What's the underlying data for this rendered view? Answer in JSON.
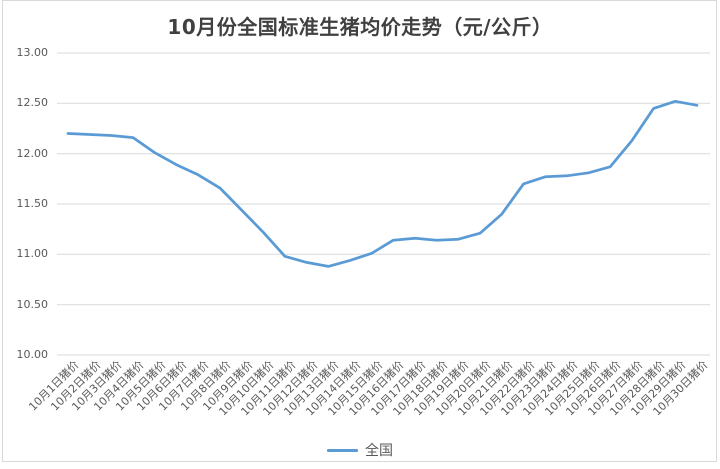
{
  "chart_data": {
    "type": "line",
    "title": "10月份全国标准生猪均价走势（元/公斤）",
    "categories": [
      "10月1日猪价",
      "10月2日猪价",
      "10月3日猪价",
      "10月4日猪价",
      "10月5日猪价",
      "10月6日猪价",
      "10月7日猪价",
      "10月8日猪价",
      "10月9日猪价",
      "10月10日猪价",
      "10月11日猪价",
      "10月12日猪价",
      "10月13日猪价",
      "10月14日猪价",
      "10月15日猪价",
      "10月16日猪价",
      "10月17日猪价",
      "10月18日猪价",
      "10月19日猪价",
      "10月20日猪价",
      "10月21日猪价",
      "10月22日猪价",
      "10月23日猪价",
      "10月24日猪价",
      "10月25日猪价",
      "10月26日猪价",
      "10月27日猪价",
      "10月28日猪价",
      "10月29日猪价",
      "10月30日猪价"
    ],
    "series": [
      {
        "name": "全国",
        "color": "#5b9bd5",
        "values": [
          12.2,
          12.19,
          12.18,
          12.16,
          12.01,
          11.89,
          11.79,
          11.66,
          11.44,
          11.22,
          10.98,
          10.92,
          10.88,
          10.94,
          11.01,
          11.14,
          11.16,
          11.14,
          11.15,
          11.21,
          11.4,
          11.7,
          11.77,
          11.78,
          11.81,
          11.87,
          12.13,
          12.45,
          12.52,
          12.48
        ]
      }
    ],
    "xlabel": "",
    "ylabel": "",
    "ylim": [
      10.0,
      13.0
    ],
    "ytick_step": 0.5,
    "y_ticks": [
      "13.00",
      "12.50",
      "12.00",
      "11.50",
      "11.00",
      "10.50",
      "10.00"
    ],
    "grid": true,
    "legend_position": "bottom",
    "x_label_rotation": 45
  },
  "colors": {
    "line": "#5b9bd5",
    "gridline": "#d9d9d9",
    "axis_text": "#595959",
    "title_text": "#404040",
    "frame_border": "#d9d9d9"
  }
}
